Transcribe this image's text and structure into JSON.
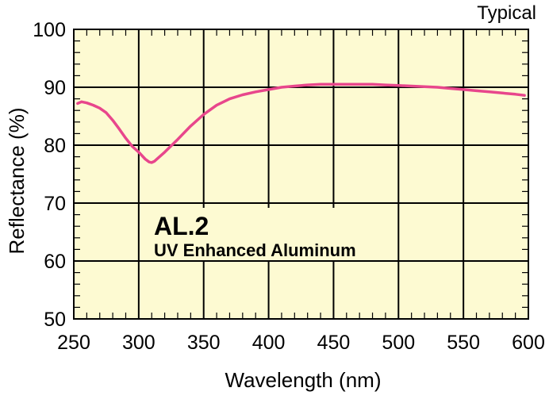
{
  "chart_data": {
    "type": "line",
    "corner_label": "Typical",
    "xlabel": "Wavelength (nm)",
    "ylabel": "Reflectance (%)",
    "xlim": [
      250,
      600
    ],
    "ylim": [
      50,
      100
    ],
    "x_ticks": [
      250,
      300,
      350,
      400,
      450,
      500,
      550,
      600
    ],
    "y_ticks": [
      50,
      60,
      70,
      80,
      90,
      100
    ],
    "grid": true,
    "background_color": "#fdfad2",
    "annotation": {
      "title": "AL.2",
      "subtitle": "UV Enhanced Aluminum"
    },
    "series": [
      {
        "color": "#e8468c",
        "x": [
          253,
          256,
          260,
          265,
          270,
          275,
          280,
          285,
          290,
          295,
          300,
          305,
          308,
          310,
          312,
          315,
          320,
          330,
          340,
          350,
          360,
          370,
          380,
          390,
          400,
          410,
          420,
          430,
          440,
          450,
          460,
          470,
          480,
          490,
          500,
          510,
          520,
          530,
          540,
          550,
          560,
          570,
          580,
          590,
          597
        ],
        "y": [
          87.2,
          87.5,
          87.3,
          86.9,
          86.4,
          85.6,
          84.3,
          82.8,
          81.2,
          79.8,
          78.8,
          77.6,
          77.1,
          77.0,
          77.2,
          77.8,
          78.8,
          81.0,
          83.3,
          85.3,
          86.9,
          88.0,
          88.7,
          89.2,
          89.6,
          90.0,
          90.2,
          90.4,
          90.5,
          90.5,
          90.5,
          90.5,
          90.5,
          90.4,
          90.3,
          90.2,
          90.1,
          90.0,
          89.8,
          89.6,
          89.4,
          89.2,
          89.0,
          88.8,
          88.6
        ]
      }
    ]
  }
}
